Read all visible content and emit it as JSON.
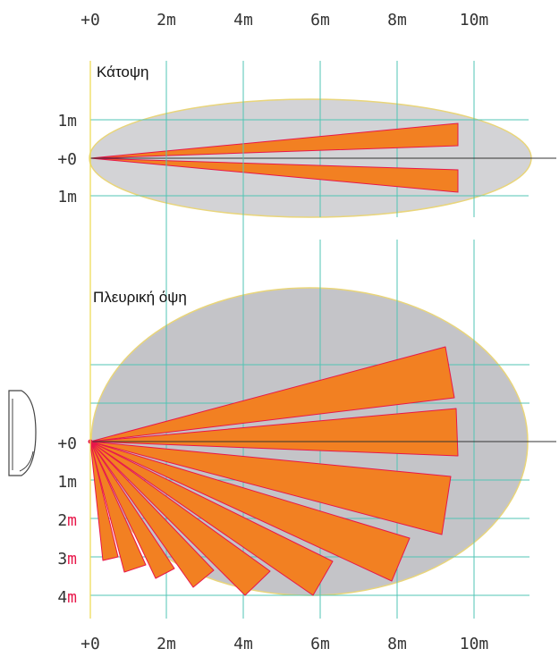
{
  "top_axis": {
    "labels": [
      "+0",
      "2m",
      "4m",
      "6m",
      "8m",
      "10m"
    ]
  },
  "bottom_axis": {
    "labels": [
      "+0",
      "2m",
      "4m",
      "6m",
      "8m",
      "10m"
    ]
  },
  "plan_view": {
    "title": "Κάτοψη",
    "y_labels": [
      "1m",
      "+0",
      "1m"
    ]
  },
  "side_view": {
    "title": "Πλευρική όψη",
    "y_labels": [
      "+0",
      "1m",
      "2",
      "3",
      "4"
    ],
    "y_units": [
      "m",
      "m",
      "m"
    ]
  },
  "colors": {
    "zone_fill": "#f28022",
    "zone_stroke": "#e8174a",
    "coverage_fill": "#d3d3d6",
    "coverage_fill_side": "#c4c4c8",
    "coverage_stroke": "#e9d57a",
    "grid": "#52c4b4",
    "origin_line": "#ecd94d",
    "unit_m_red": "#e8174a"
  },
  "icons": [
    "sensor-device-icon"
  ]
}
